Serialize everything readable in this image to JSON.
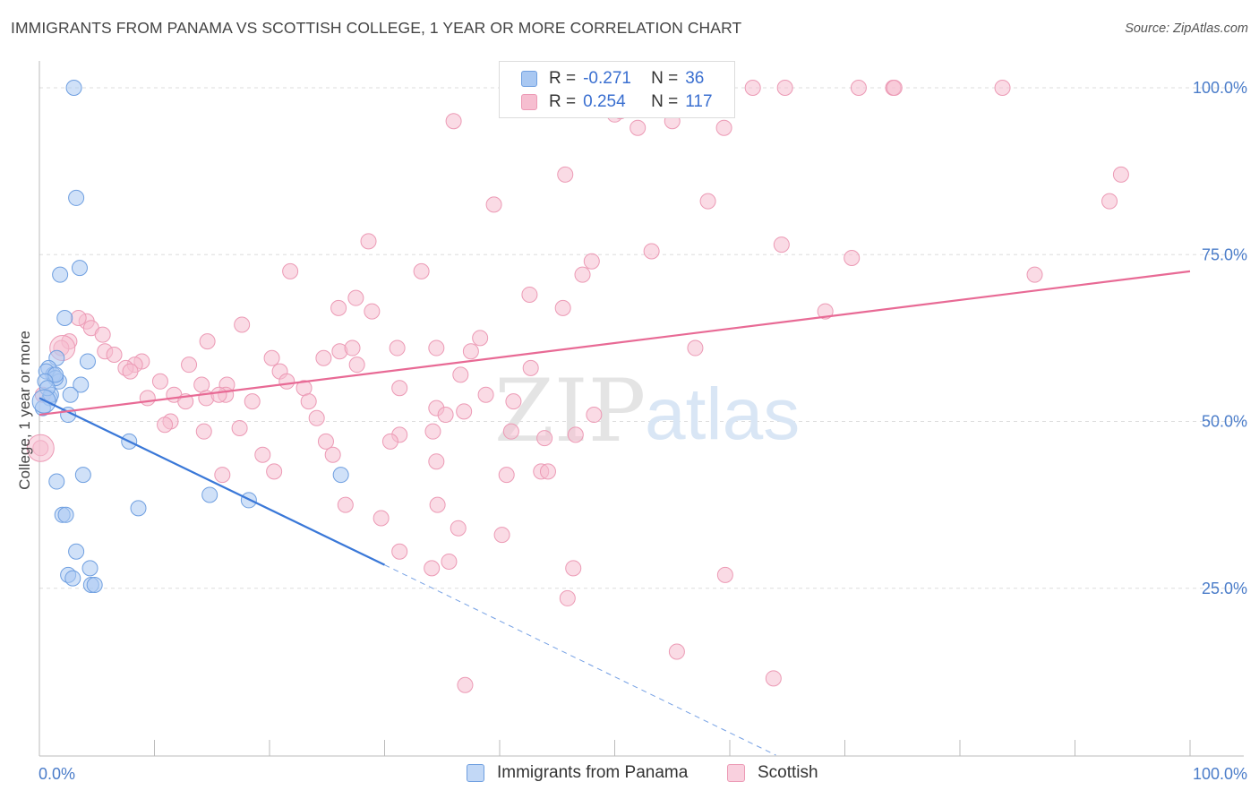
{
  "title": "IMMIGRANTS FROM PANAMA VS SCOTTISH COLLEGE, 1 YEAR OR MORE CORRELATION CHART",
  "source": "Source: ZipAtlas.com",
  "watermark": {
    "zip": "ZIP",
    "atlas": "atlas"
  },
  "legend": {
    "r_label": "R =",
    "n_label": "N =",
    "rows": [
      {
        "series": "Immigrants from Panama",
        "r": "-0.271",
        "n": "36"
      },
      {
        "series": "Scottish",
        "r": "0.254",
        "n": "117"
      }
    ]
  },
  "bottom_legend": [
    "Immigrants from Panama",
    "Scottish"
  ],
  "colors": {
    "blue_fill": "#a9c8f2",
    "blue_stroke": "#6f9fe0",
    "blue_line": "#3a78d8",
    "pink_fill": "#f6bed0",
    "pink_stroke": "#ec9ab5",
    "pink_line": "#e86a95",
    "axis_text": "#4a7cc9",
    "grid": "#dddddd"
  },
  "chart_data": {
    "type": "scatter",
    "title": "IMMIGRANTS FROM PANAMA VS SCOTTISH COLLEGE, 1 YEAR OR MORE CORRELATION CHART",
    "xlabel": "",
    "ylabel": "College, 1 year or more",
    "xlim": [
      0,
      100
    ],
    "ylim": [
      0,
      102
    ],
    "x_tick_labels": [
      "0.0%",
      "100.0%"
    ],
    "y_ticks": [
      25,
      50,
      75,
      100
    ],
    "y_tick_labels": [
      "25.0%",
      "50.0%",
      "75.0%",
      "100.0%"
    ],
    "grid": true,
    "series": [
      {
        "name": "Immigrants from Panama",
        "r": -0.271,
        "n": 36,
        "points": [
          [
            3,
            100
          ],
          [
            3.2,
            83.5
          ],
          [
            1.8,
            72
          ],
          [
            3.5,
            73
          ],
          [
            2.2,
            65.5
          ],
          [
            4.2,
            59
          ],
          [
            1.5,
            59.5
          ],
          [
            0.8,
            58
          ],
          [
            1.2,
            57
          ],
          [
            0.6,
            57.5
          ],
          [
            1.7,
            56
          ],
          [
            1.4,
            56.5
          ],
          [
            3.6,
            55.5
          ],
          [
            2.7,
            54
          ],
          [
            0.9,
            53.5
          ],
          [
            0.3,
            52
          ],
          [
            2.5,
            51
          ],
          [
            7.8,
            47
          ],
          [
            3.8,
            42
          ],
          [
            1.5,
            41
          ],
          [
            14.8,
            39
          ],
          [
            18.2,
            38.2
          ],
          [
            26.2,
            42
          ],
          [
            8.6,
            37
          ],
          [
            2,
            36
          ],
          [
            2.3,
            36
          ],
          [
            3.2,
            30.5
          ],
          [
            4.4,
            28
          ],
          [
            2.5,
            27
          ],
          [
            2.9,
            26.5
          ],
          [
            4.5,
            25.5
          ],
          [
            4.8,
            25.5
          ],
          [
            1,
            54
          ],
          [
            1.4,
            57
          ],
          [
            0.5,
            56
          ],
          [
            0.7,
            55
          ]
        ],
        "trend": {
          "x0": 0,
          "y0": 53.5,
          "x1": 30,
          "y1": 28.5,
          "dash_x1": 64,
          "dash_y1": 0
        }
      },
      {
        "name": "Scottish",
        "r": 0.254,
        "n": 117,
        "points": [
          [
            59.5,
            100
          ],
          [
            62,
            100
          ],
          [
            64.8,
            100
          ],
          [
            71.2,
            100
          ],
          [
            74.2,
            100
          ],
          [
            83.7,
            100
          ],
          [
            52,
            94
          ],
          [
            55,
            95
          ],
          [
            59.5,
            94
          ],
          [
            36,
            95
          ],
          [
            49,
            97
          ],
          [
            50,
            96
          ],
          [
            50.5,
            96.5
          ],
          [
            94,
            87
          ],
          [
            93,
            83
          ],
          [
            74.3,
            100
          ],
          [
            45.7,
            87
          ],
          [
            39.5,
            82.5
          ],
          [
            58.1,
            83
          ],
          [
            28.6,
            77
          ],
          [
            64.5,
            76.5
          ],
          [
            53.2,
            75.5
          ],
          [
            70.6,
            74.5
          ],
          [
            48,
            74
          ],
          [
            21.8,
            72.5
          ],
          [
            33.2,
            72.5
          ],
          [
            47.2,
            72
          ],
          [
            86.5,
            72
          ],
          [
            27.5,
            68.5
          ],
          [
            42.6,
            69
          ],
          [
            45.5,
            67
          ],
          [
            26,
            67
          ],
          [
            28.9,
            66.5
          ],
          [
            68.3,
            66.5
          ],
          [
            4.1,
            65
          ],
          [
            17.6,
            64.5
          ],
          [
            4.5,
            64
          ],
          [
            3.4,
            65.5
          ],
          [
            5.5,
            63
          ],
          [
            2.6,
            62
          ],
          [
            1.9,
            61
          ],
          [
            14.6,
            62
          ],
          [
            38.3,
            62.5
          ],
          [
            31.1,
            61
          ],
          [
            34.5,
            61
          ],
          [
            26.1,
            60.5
          ],
          [
            27.2,
            61
          ],
          [
            5.7,
            60.5
          ],
          [
            6.5,
            60
          ],
          [
            8.9,
            59
          ],
          [
            8.3,
            58.5
          ],
          [
            20.2,
            59.5
          ],
          [
            24.7,
            59.5
          ],
          [
            37.5,
            60.5
          ],
          [
            57,
            61
          ],
          [
            42.7,
            58
          ],
          [
            13,
            58.5
          ],
          [
            7.5,
            58
          ],
          [
            7.9,
            57.5
          ],
          [
            20.9,
            57.5
          ],
          [
            27.6,
            58.5
          ],
          [
            36.6,
            57
          ],
          [
            21.5,
            56
          ],
          [
            10.5,
            56
          ],
          [
            14.1,
            55.5
          ],
          [
            16.3,
            55.5
          ],
          [
            23,
            55
          ],
          [
            31.3,
            55
          ],
          [
            38.8,
            54
          ],
          [
            16.2,
            54
          ],
          [
            11.7,
            54
          ],
          [
            14.5,
            53.5
          ],
          [
            15.6,
            54
          ],
          [
            18.5,
            53
          ],
          [
            23.4,
            53
          ],
          [
            12.7,
            53
          ],
          [
            9.4,
            53.5
          ],
          [
            41.2,
            53
          ],
          [
            34.5,
            52
          ],
          [
            36.9,
            51.5
          ],
          [
            35.3,
            51
          ],
          [
            48.2,
            51
          ],
          [
            24.1,
            50.5
          ],
          [
            11.4,
            50
          ],
          [
            10.9,
            49.5
          ],
          [
            14.3,
            48.5
          ],
          [
            17.4,
            49
          ],
          [
            34.2,
            48.5
          ],
          [
            41,
            48.5
          ],
          [
            46.6,
            48
          ],
          [
            31.3,
            48
          ],
          [
            30.5,
            47
          ],
          [
            43.9,
            47.5
          ],
          [
            24.9,
            47
          ],
          [
            19.4,
            45
          ],
          [
            25.5,
            45
          ],
          [
            34.5,
            44
          ],
          [
            40.6,
            42
          ],
          [
            43.6,
            42.5
          ],
          [
            44.2,
            42.5
          ],
          [
            15.9,
            42
          ],
          [
            20.4,
            42.5
          ],
          [
            26.6,
            37.5
          ],
          [
            34.6,
            37.5
          ],
          [
            29.7,
            35.5
          ],
          [
            36.4,
            34
          ],
          [
            40.2,
            33
          ],
          [
            31.3,
            30.5
          ],
          [
            34.1,
            28
          ],
          [
            35.6,
            29
          ],
          [
            46.4,
            28
          ],
          [
            59.6,
            27
          ],
          [
            45.9,
            23.5
          ],
          [
            55.4,
            15.5
          ],
          [
            37,
            10.5
          ],
          [
            63.8,
            11.5
          ],
          [
            0.3,
            54
          ],
          [
            0.1,
            46
          ]
        ],
        "trend": {
          "x0": 0,
          "y0": 51,
          "x1": 100,
          "y1": 72.5
        }
      }
    ]
  }
}
